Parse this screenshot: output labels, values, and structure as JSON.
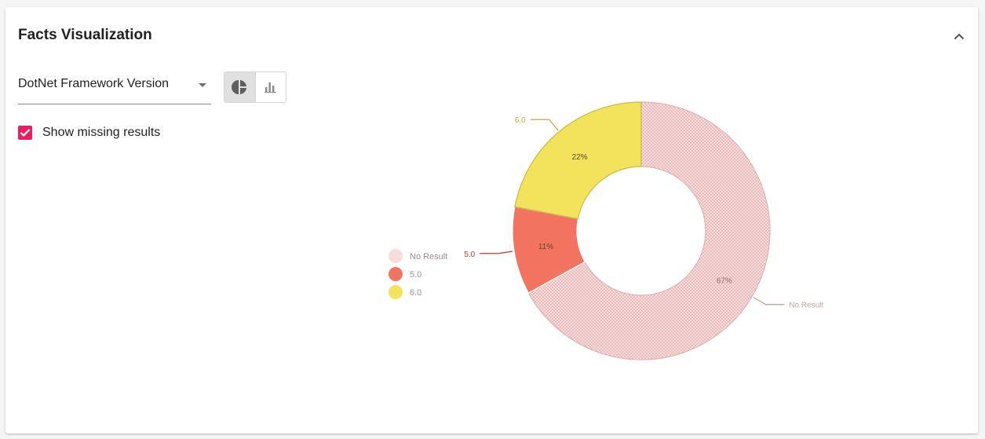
{
  "panel": {
    "title": "Facts Visualization"
  },
  "controls": {
    "fact_select_value": "DotNet Framework Version",
    "show_missing_label": "Show missing results",
    "show_missing_checked": true,
    "active_view": "pie",
    "view_toggles": [
      {
        "name": "pie-chart-toggle",
        "icon": "pie-chart-icon",
        "active": true
      },
      {
        "name": "bar-chart-toggle",
        "icon": "bar-chart-icon",
        "active": false
      }
    ]
  },
  "colors": {
    "accent": "#e91e63",
    "no_result": "#f7dcdc",
    "v50": "#f2735f",
    "v60": "#f2e25c"
  },
  "chart_data": {
    "type": "pie",
    "donut": true,
    "legend_position": "left",
    "labels": [
      "No Result",
      "5.0",
      "6.0"
    ],
    "values": [
      67,
      11,
      22
    ],
    "value_labels": [
      "67%",
      "11%",
      "22%"
    ],
    "legend": [
      "No Result",
      "5.0",
      "6.0"
    ],
    "colors": [
      "#f7dcdc",
      "#f2735f",
      "#f2e25c"
    ]
  }
}
